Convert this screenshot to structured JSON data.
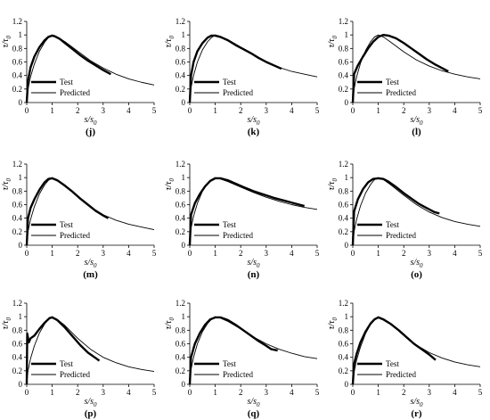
{
  "chart_data": [
    {
      "type": "line",
      "panel_label": "(j)",
      "xlabel": "s/s0",
      "ylabel": "τ/τ0",
      "xlim": [
        0,
        5
      ],
      "ylim": [
        0,
        1.2
      ],
      "xticks": [
        0,
        1,
        2,
        3,
        4,
        5
      ],
      "yticks": [
        0,
        0.2,
        0.4,
        0.6,
        0.8,
        1,
        1.2
      ],
      "legend_position": "bottom-left",
      "series": [
        {
          "name": "Test",
          "style": "thick",
          "x": [
            0,
            0.05,
            0.15,
            0.3,
            0.5,
            0.7,
            0.85,
            1.0,
            1.1,
            1.3,
            1.5,
            1.8,
            2.1,
            2.4,
            2.7,
            3.0,
            3.3
          ],
          "y": [
            0,
            0.32,
            0.52,
            0.68,
            0.82,
            0.92,
            0.97,
            0.99,
            0.98,
            0.94,
            0.88,
            0.79,
            0.7,
            0.62,
            0.55,
            0.48,
            0.42
          ]
        },
        {
          "name": "Predicted",
          "style": "thin",
          "x": [
            0,
            0.05,
            0.15,
            0.3,
            0.5,
            0.7,
            0.85,
            1.0,
            1.2,
            1.5,
            2.0,
            2.5,
            3.0,
            3.5,
            4.0,
            4.5,
            5.0
          ],
          "y": [
            0,
            0.2,
            0.38,
            0.57,
            0.76,
            0.89,
            0.96,
            1.0,
            0.97,
            0.9,
            0.76,
            0.62,
            0.51,
            0.42,
            0.35,
            0.3,
            0.26
          ]
        }
      ]
    },
    {
      "type": "line",
      "panel_label": "(k)",
      "xlabel": "s/s0",
      "ylabel": "τ/τ0",
      "xlim": [
        0,
        5
      ],
      "ylim": [
        0,
        1.2
      ],
      "xticks": [
        0,
        1,
        2,
        3,
        4,
        5
      ],
      "yticks": [
        0,
        0.2,
        0.4,
        0.6,
        0.8,
        1,
        1.2
      ],
      "legend_position": "bottom-left",
      "series": [
        {
          "name": "Test",
          "style": "thick",
          "x": [
            0,
            0.05,
            0.15,
            0.3,
            0.5,
            0.7,
            0.85,
            1.0,
            1.2,
            1.5,
            1.8,
            2.1,
            2.4,
            2.7,
            3.0,
            3.3,
            3.6
          ],
          "y": [
            0,
            0.4,
            0.6,
            0.76,
            0.88,
            0.96,
            0.99,
            0.99,
            0.97,
            0.92,
            0.85,
            0.79,
            0.73,
            0.66,
            0.6,
            0.55,
            0.5
          ]
        },
        {
          "name": "Predicted",
          "style": "thin",
          "x": [
            0,
            0.05,
            0.15,
            0.3,
            0.5,
            0.7,
            0.85,
            1.0,
            1.2,
            1.5,
            2.0,
            2.5,
            3.0,
            3.5,
            4.0,
            4.5,
            5.0
          ],
          "y": [
            0,
            0.22,
            0.4,
            0.6,
            0.78,
            0.9,
            0.96,
            1.0,
            0.98,
            0.93,
            0.82,
            0.71,
            0.61,
            0.52,
            0.46,
            0.42,
            0.38
          ]
        }
      ]
    },
    {
      "type": "line",
      "panel_label": "(l)",
      "xlabel": "s/s0",
      "ylabel": "τ/τ0",
      "xlim": [
        0,
        5
      ],
      "ylim": [
        0,
        1.2
      ],
      "xticks": [
        0,
        1,
        2,
        3,
        4,
        5
      ],
      "yticks": [
        0,
        0.2,
        0.4,
        0.6,
        0.8,
        1,
        1.2
      ],
      "legend_position": "bottom-left",
      "series": [
        {
          "name": "Test",
          "style": "thick",
          "x": [
            0,
            0.05,
            0.2,
            0.4,
            0.6,
            0.8,
            1.0,
            1.2,
            1.4,
            1.7,
            2.0,
            2.3,
            2.6,
            2.9,
            3.2,
            3.5,
            3.75
          ],
          "y": [
            0,
            0.42,
            0.55,
            0.68,
            0.8,
            0.9,
            0.97,
            1.0,
            0.99,
            0.95,
            0.88,
            0.8,
            0.72,
            0.64,
            0.57,
            0.51,
            0.46
          ]
        },
        {
          "name": "Predicted",
          "style": "thin",
          "x": [
            0,
            0.05,
            0.15,
            0.3,
            0.5,
            0.7,
            0.85,
            1.0,
            1.2,
            1.5,
            2.0,
            2.5,
            3.0,
            3.5,
            4.0,
            4.5,
            5.0
          ],
          "y": [
            0,
            0.2,
            0.38,
            0.58,
            0.77,
            0.9,
            0.97,
            1.0,
            0.97,
            0.89,
            0.75,
            0.63,
            0.54,
            0.47,
            0.42,
            0.38,
            0.35
          ]
        }
      ]
    },
    {
      "type": "line",
      "panel_label": "(m)",
      "xlabel": "s/s0",
      "ylabel": "τ/τ0",
      "xlim": [
        0,
        5
      ],
      "ylim": [
        0,
        1.2
      ],
      "xticks": [
        0,
        1,
        2,
        3,
        4,
        5
      ],
      "yticks": [
        0,
        0.2,
        0.4,
        0.6,
        0.8,
        1,
        1.2
      ],
      "legend_position": "bottom-left",
      "series": [
        {
          "name": "Test",
          "style": "thick",
          "x": [
            0,
            0.05,
            0.15,
            0.3,
            0.5,
            0.7,
            0.85,
            1.0,
            1.2,
            1.5,
            1.8,
            2.1,
            2.4,
            2.7,
            3.0,
            3.2
          ],
          "y": [
            0,
            0.4,
            0.55,
            0.68,
            0.82,
            0.93,
            0.98,
            0.99,
            0.96,
            0.88,
            0.79,
            0.69,
            0.6,
            0.51,
            0.44,
            0.4
          ]
        },
        {
          "name": "Predicted",
          "style": "thin",
          "x": [
            0,
            0.05,
            0.15,
            0.3,
            0.5,
            0.7,
            0.85,
            1.0,
            1.2,
            1.5,
            2.0,
            2.5,
            3.0,
            3.5,
            4.0,
            4.5,
            5.0
          ],
          "y": [
            0,
            0.2,
            0.38,
            0.57,
            0.76,
            0.89,
            0.96,
            1.0,
            0.97,
            0.89,
            0.72,
            0.57,
            0.45,
            0.37,
            0.31,
            0.27,
            0.23
          ]
        }
      ]
    },
    {
      "type": "line",
      "panel_label": "(n)",
      "xlabel": "s/s0",
      "ylabel": "τ/τ0",
      "xlim": [
        0,
        5
      ],
      "ylim": [
        0,
        1.2
      ],
      "xticks": [
        0,
        1,
        2,
        3,
        4,
        5
      ],
      "yticks": [
        0,
        0.2,
        0.4,
        0.6,
        0.8,
        1,
        1.2
      ],
      "legend_position": "bottom-left",
      "series": [
        {
          "name": "Test",
          "style": "thick",
          "x": [
            0,
            0.05,
            0.2,
            0.4,
            0.6,
            0.8,
            1.0,
            1.2,
            1.5,
            1.8,
            2.1,
            2.5,
            2.9,
            3.3,
            3.7,
            4.1,
            4.5
          ],
          "y": [
            0,
            0.45,
            0.62,
            0.76,
            0.87,
            0.95,
            0.99,
            0.99,
            0.96,
            0.91,
            0.86,
            0.8,
            0.75,
            0.7,
            0.66,
            0.62,
            0.58
          ]
        },
        {
          "name": "Predicted",
          "style": "thin",
          "x": [
            0,
            0.05,
            0.15,
            0.3,
            0.5,
            0.7,
            0.85,
            1.0,
            1.2,
            1.5,
            2.0,
            2.5,
            3.0,
            3.5,
            4.0,
            4.5,
            5.0
          ],
          "y": [
            0,
            0.25,
            0.43,
            0.62,
            0.8,
            0.92,
            0.97,
            1.0,
            0.98,
            0.94,
            0.86,
            0.78,
            0.71,
            0.65,
            0.6,
            0.56,
            0.53
          ]
        }
      ]
    },
    {
      "type": "line",
      "panel_label": "(o)",
      "xlabel": "s/s0",
      "ylabel": "τ/τ0",
      "xlim": [
        0,
        5
      ],
      "ylim": [
        0,
        1.2
      ],
      "xticks": [
        0,
        1,
        2,
        3,
        4,
        5
      ],
      "yticks": [
        0,
        0.2,
        0.4,
        0.6,
        0.8,
        1,
        1.2
      ],
      "legend_position": "bottom-left",
      "series": [
        {
          "name": "Test",
          "style": "thick",
          "x": [
            0,
            0.05,
            0.2,
            0.4,
            0.6,
            0.8,
            1.0,
            1.2,
            1.4,
            1.7,
            2.0,
            2.3,
            2.6,
            2.9,
            3.2,
            3.4
          ],
          "y": [
            0,
            0.5,
            0.68,
            0.83,
            0.93,
            0.98,
            0.99,
            0.98,
            0.94,
            0.86,
            0.77,
            0.69,
            0.61,
            0.55,
            0.49,
            0.47
          ]
        },
        {
          "name": "Predicted",
          "style": "thin",
          "x": [
            0,
            0.05,
            0.15,
            0.3,
            0.5,
            0.7,
            0.85,
            1.0,
            1.2,
            1.5,
            2.0,
            2.5,
            3.0,
            3.5,
            4.0,
            4.5,
            5.0
          ],
          "y": [
            0,
            0.2,
            0.38,
            0.58,
            0.77,
            0.9,
            0.97,
            1.0,
            0.97,
            0.89,
            0.74,
            0.6,
            0.49,
            0.41,
            0.35,
            0.31,
            0.28
          ]
        }
      ]
    },
    {
      "type": "line",
      "panel_label": "(p)",
      "xlabel": "s/s0",
      "ylabel": "τ/τ0",
      "xlim": [
        0,
        5
      ],
      "ylim": [
        0,
        1.2
      ],
      "xticks": [
        0,
        1,
        2,
        3,
        4,
        5
      ],
      "yticks": [
        0,
        0.2,
        0.4,
        0.6,
        0.8,
        1,
        1.2
      ],
      "legend_position": "bottom-left",
      "series": [
        {
          "name": "Test",
          "style": "thick",
          "x": [
            0,
            0.02,
            0.08,
            0.15,
            0.3,
            0.5,
            0.7,
            0.9,
            1.0,
            1.2,
            1.5,
            1.8,
            2.1,
            2.4,
            2.7,
            2.85
          ],
          "y": [
            0,
            0.75,
            0.62,
            0.68,
            0.72,
            0.82,
            0.91,
            0.98,
            0.99,
            0.95,
            0.84,
            0.71,
            0.58,
            0.47,
            0.39,
            0.35
          ]
        },
        {
          "name": "Predicted",
          "style": "thin",
          "x": [
            0,
            0.05,
            0.15,
            0.3,
            0.5,
            0.7,
            0.85,
            1.0,
            1.2,
            1.5,
            2.0,
            2.5,
            3.0,
            3.5,
            4.0,
            4.5,
            5.0
          ],
          "y": [
            0,
            0.2,
            0.38,
            0.57,
            0.76,
            0.89,
            0.96,
            1.0,
            0.96,
            0.87,
            0.68,
            0.52,
            0.4,
            0.32,
            0.26,
            0.22,
            0.19
          ]
        }
      ]
    },
    {
      "type": "line",
      "panel_label": "(q)",
      "xlabel": "s/s0",
      "ylabel": "τ/τ0",
      "xlim": [
        0,
        5
      ],
      "ylim": [
        0,
        1.2
      ],
      "xticks": [
        0,
        1,
        2,
        3,
        4,
        5
      ],
      "yticks": [
        0,
        0.2,
        0.4,
        0.6,
        0.8,
        1,
        1.2
      ],
      "legend_position": "bottom-left",
      "series": [
        {
          "name": "Test",
          "style": "thick",
          "x": [
            0,
            0.05,
            0.2,
            0.4,
            0.6,
            0.8,
            1.0,
            1.2,
            1.5,
            1.8,
            2.1,
            2.4,
            2.7,
            3.0,
            3.2,
            3.45
          ],
          "y": [
            0,
            0.4,
            0.6,
            0.76,
            0.88,
            0.96,
            0.99,
            0.99,
            0.95,
            0.88,
            0.8,
            0.72,
            0.64,
            0.57,
            0.52,
            0.5
          ]
        },
        {
          "name": "Predicted",
          "style": "thin",
          "x": [
            0,
            0.05,
            0.15,
            0.3,
            0.5,
            0.7,
            0.85,
            1.0,
            1.2,
            1.5,
            2.0,
            2.5,
            3.0,
            3.5,
            4.0,
            4.5,
            5.0
          ],
          "y": [
            0,
            0.22,
            0.4,
            0.6,
            0.78,
            0.9,
            0.96,
            1.0,
            0.98,
            0.93,
            0.82,
            0.7,
            0.6,
            0.52,
            0.46,
            0.41,
            0.38
          ]
        }
      ]
    },
    {
      "type": "line",
      "panel_label": "(r)",
      "xlabel": "s/s0",
      "ylabel": "τ/τ0",
      "xlim": [
        0,
        5
      ],
      "ylim": [
        0,
        1.2
      ],
      "xticks": [
        0,
        1,
        2,
        3,
        4,
        5
      ],
      "yticks": [
        0,
        0.2,
        0.4,
        0.6,
        0.8,
        1,
        1.2
      ],
      "legend_position": "bottom-left",
      "series": [
        {
          "name": "Test",
          "style": "thick",
          "x": [
            0,
            0.05,
            0.15,
            0.3,
            0.5,
            0.7,
            0.85,
            1.0,
            1.2,
            1.5,
            1.8,
            2.1,
            2.4,
            2.7,
            3.0,
            3.25
          ],
          "y": [
            0,
            0.3,
            0.45,
            0.62,
            0.78,
            0.9,
            0.96,
            0.99,
            0.96,
            0.89,
            0.8,
            0.7,
            0.6,
            0.52,
            0.44,
            0.36
          ]
        },
        {
          "name": "Predicted",
          "style": "thin",
          "x": [
            0,
            0.05,
            0.15,
            0.3,
            0.5,
            0.7,
            0.85,
            1.0,
            1.2,
            1.5,
            2.0,
            2.5,
            3.0,
            3.5,
            4.0,
            4.5,
            5.0
          ],
          "y": [
            0,
            0.18,
            0.36,
            0.55,
            0.75,
            0.89,
            0.96,
            1.0,
            0.97,
            0.89,
            0.73,
            0.58,
            0.47,
            0.39,
            0.33,
            0.29,
            0.26
          ]
        }
      ]
    }
  ]
}
